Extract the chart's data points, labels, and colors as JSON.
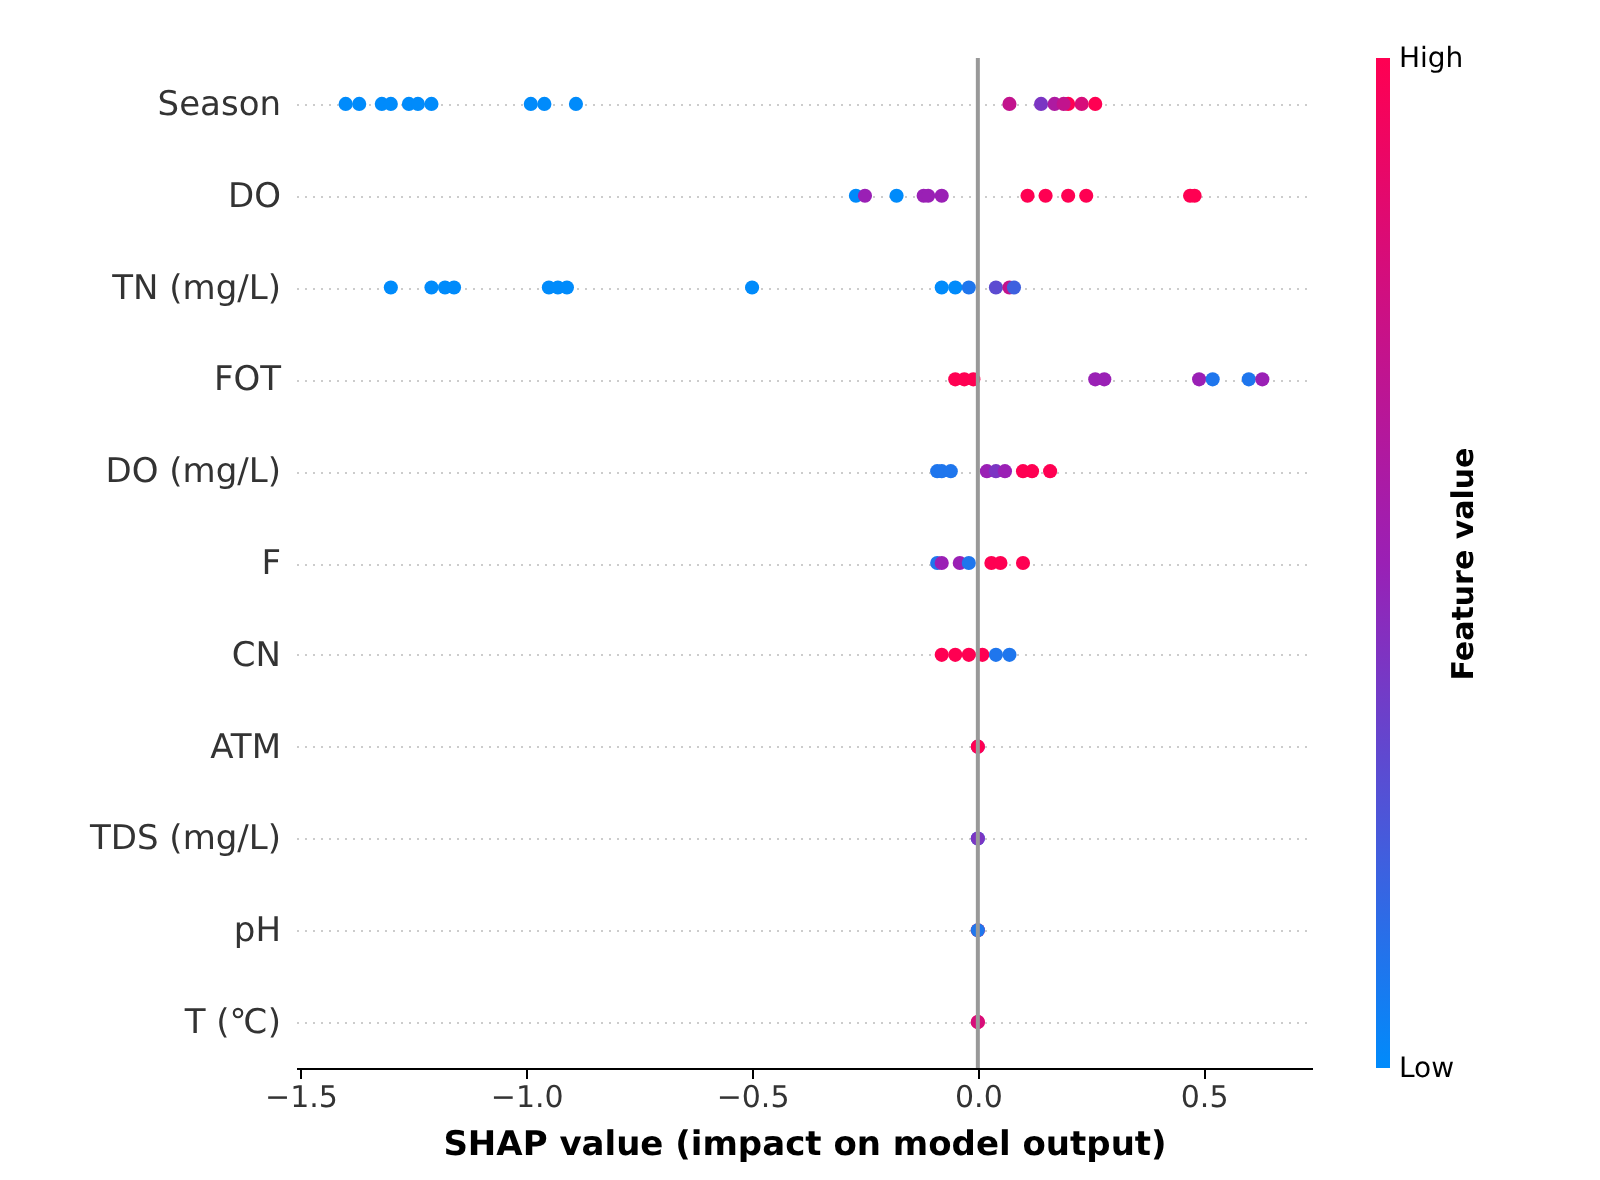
{
  "chart_data": {
    "type": "scatter",
    "orientation": "horizontal",
    "xlabel": "SHAP value (impact on model output)",
    "clabel": "Feature value",
    "categories": [
      "Season",
      "DO",
      "TN (mg/L)",
      "FOT",
      "DO (mg/L)",
      "F",
      "CN",
      "ATM",
      "TDS (mg/L)",
      "pH",
      "T  (℃)"
    ],
    "xlim": [
      -1.51,
      0.74
    ],
    "xticks": [
      {
        "value": -1.5,
        "label": "−1.5"
      },
      {
        "value": -1.0,
        "label": "−1.0"
      },
      {
        "value": -0.5,
        "label": "−0.5"
      },
      {
        "value": 0.0,
        "label": "0.0"
      },
      {
        "value": 0.5,
        "label": "0.5"
      }
    ],
    "clim": [
      0,
      1
    ],
    "cticks": [
      {
        "value": 0,
        "label": "Low"
      },
      {
        "value": 1,
        "label": "High"
      }
    ],
    "grid": "y",
    "marker": "circle",
    "ref_lines": [
      {
        "axis": "x",
        "value": 0,
        "color": "#999999"
      }
    ],
    "series": [
      {
        "x": [
          "Season",
          "Season",
          "Season",
          "Season",
          "Season",
          "Season",
          "Season",
          "Season",
          "Season",
          "Season",
          "Season",
          "Season",
          "Season",
          "Season",
          "Season",
          "Season",
          "Season",
          "DO",
          "DO",
          "DO",
          "DO",
          "DO",
          "DO",
          "DO",
          "DO",
          "DO",
          "DO",
          "DO",
          "DO",
          "TN (mg/L)",
          "TN (mg/L)",
          "TN (mg/L)",
          "TN (mg/L)",
          "TN (mg/L)",
          "TN (mg/L)",
          "TN (mg/L)",
          "TN (mg/L)",
          "TN (mg/L)",
          "TN (mg/L)",
          "TN (mg/L)",
          "TN (mg/L)",
          "TN (mg/L)",
          "TN (mg/L)",
          "FOT",
          "FOT",
          "FOT",
          "FOT",
          "FOT",
          "FOT",
          "FOT",
          "FOT",
          "FOT",
          "DO (mg/L)",
          "DO (mg/L)",
          "DO (mg/L)",
          "DO (mg/L)",
          "DO (mg/L)",
          "DO (mg/L)",
          "DO (mg/L)",
          "DO (mg/L)",
          "DO (mg/L)",
          "F",
          "F",
          "F",
          "F",
          "F",
          "F",
          "F",
          "CN",
          "CN",
          "CN",
          "CN",
          "CN",
          "CN",
          "ATM",
          "ATM",
          "TDS (mg/L)",
          "TDS (mg/L)",
          "pH",
          "pH",
          "T  (℃)",
          "T  (℃)"
        ],
        "values": [
          -1.4,
          -1.37,
          -1.32,
          -1.3,
          -1.26,
          -1.24,
          -1.21,
          -0.99,
          -0.96,
          -0.89,
          0.07,
          0.14,
          0.17,
          0.2,
          0.23,
          0.26,
          0.19,
          -0.27,
          -0.25,
          -0.18,
          -0.12,
          -0.11,
          -0.08,
          0.11,
          0.15,
          0.2,
          0.24,
          0.47,
          0.48,
          -1.3,
          -1.21,
          -1.18,
          -1.16,
          -0.95,
          -0.93,
          -0.91,
          -0.5,
          -0.08,
          -0.05,
          -0.02,
          0.04,
          0.07,
          0.08,
          -0.05,
          -0.03,
          -0.01,
          0.26,
          0.28,
          0.49,
          0.52,
          0.6,
          0.63,
          -0.09,
          -0.08,
          -0.06,
          0.02,
          0.04,
          0.06,
          0.1,
          0.12,
          0.16,
          -0.09,
          -0.08,
          -0.04,
          -0.02,
          0.03,
          0.05,
          0.1,
          -0.08,
          -0.05,
          -0.02,
          0.01,
          0.04,
          0.07,
          0.0,
          0.0,
          0.0,
          0.0,
          0.0,
          0.0,
          0.0,
          0.0
        ],
        "cvalues": [
          0,
          0,
          0,
          0,
          0,
          0,
          0,
          0,
          0,
          0,
          0.7,
          0.4,
          0.6,
          1,
          0.8,
          1,
          0.7,
          0,
          0.5,
          0,
          0.5,
          0.5,
          0.5,
          1,
          1,
          1,
          1,
          1,
          1,
          0,
          0,
          0,
          0,
          0,
          0,
          0,
          0,
          0,
          0,
          0.1,
          0.3,
          0.7,
          0.2,
          1,
          1,
          1,
          0.5,
          0.5,
          0.5,
          0.1,
          0.1,
          0.5,
          0.1,
          0.1,
          0.1,
          0.5,
          0.4,
          0.5,
          1,
          1,
          1,
          0.1,
          0.5,
          0.5,
          0.1,
          1,
          1,
          1,
          1,
          1,
          1,
          1,
          0.1,
          0.1,
          0.5,
          1,
          0.1,
          0.4,
          1,
          0.1,
          1,
          0.8
        ]
      }
    ]
  }
}
